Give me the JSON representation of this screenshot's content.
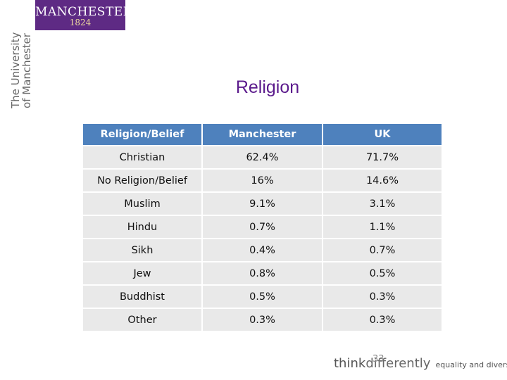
{
  "logo": {
    "name": "MANCHESTER",
    "year": "1824"
  },
  "university": {
    "line1": "The University",
    "line2": "of Manchester"
  },
  "title": "Religion",
  "table": {
    "headers": [
      "Religion/Belief",
      "Manchester",
      "UK"
    ],
    "rows": [
      [
        "Christian",
        "62.4%",
        "71.7%"
      ],
      [
        "No Religion/Belief",
        "16%",
        "14.6%"
      ],
      [
        "Muslim",
        "9.1%",
        "3.1%"
      ],
      [
        "Hindu",
        "0.7%",
        "1.1%"
      ],
      [
        "Sikh",
        "0.4%",
        "0.7%"
      ],
      [
        "Jew",
        "0.8%",
        "0.5%"
      ],
      [
        "Buddhist",
        "0.5%",
        "0.3%"
      ],
      [
        "Other",
        "0.3%",
        "0.3%"
      ]
    ]
  },
  "footer": {
    "think": "think",
    "differently": "differently",
    "tagline": "equality and diversity"
  },
  "page_number": "33",
  "colors": {
    "header_bg": "#4e81bd",
    "row_bg": "#e9e9e9",
    "title": "#5b1a8c",
    "logo_bg": "#5e2a84"
  }
}
